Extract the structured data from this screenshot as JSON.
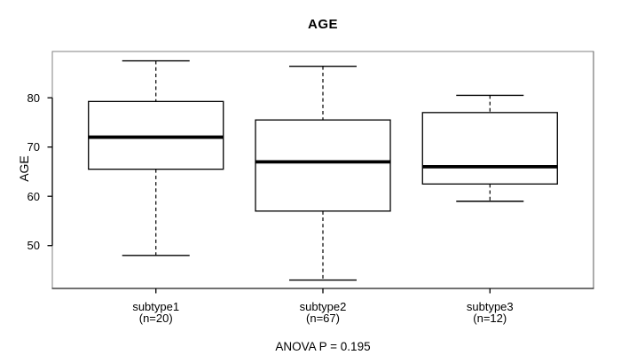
{
  "chart_data": {
    "type": "boxplot",
    "title": "AGE",
    "ylabel": "AGE",
    "annotation": "ANOVA P = 0.195",
    "yticks": [
      50,
      60,
      70,
      80
    ],
    "ylim": [
      41.3,
      89.4
    ],
    "grid": false,
    "legend": "none",
    "groups": [
      {
        "label": "subtype1",
        "count_label": "(n=20)",
        "whisker_low": 48,
        "q1": 65.5,
        "median": 72,
        "q3": 79.25,
        "whisker_high": 87.5
      },
      {
        "label": "subtype2",
        "count_label": "(n=67)",
        "whisker_low": 43,
        "q1": 57,
        "median": 67,
        "q3": 75.5,
        "whisker_high": 86.4
      },
      {
        "label": "subtype3",
        "count_label": "(n=12)",
        "whisker_low": 59,
        "q1": 62.5,
        "median": 66,
        "q3": 77,
        "whisker_high": 80.5
      }
    ],
    "colors": {
      "background": "#ffffff",
      "frame": "#828282",
      "frame_bottom": "#1c1c1c",
      "frame_right": "#5a5a5a",
      "axis": "#000000",
      "box_stroke": "#000000",
      "box_fill": "#ffffff",
      "median": "#000000",
      "text": "#000000"
    }
  }
}
